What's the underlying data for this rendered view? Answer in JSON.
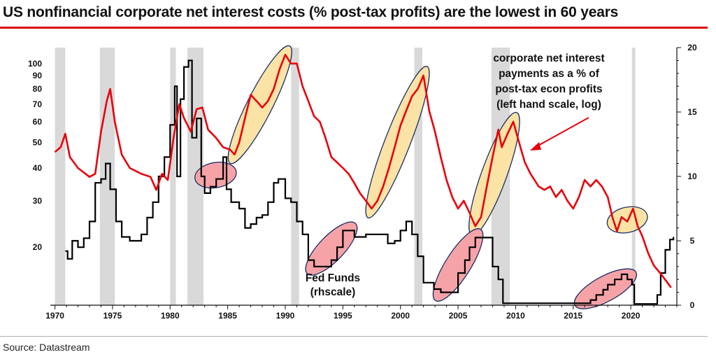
{
  "page": {
    "title": "US nonfinancial corporate net interest costs (% post-tax profits) are the lowest in 60 years",
    "source": "Source: Datastream"
  },
  "colors": {
    "interest_line": "#e8000b",
    "fedfunds_line": "#000000",
    "recession": "#d9d9d9",
    "rising_rates_fill": "#f6a3a8",
    "rising_interest_fill": "#fbe3a6",
    "accent_rule": "#d9000d"
  },
  "chart_data": {
    "type": "line",
    "title": "US nonfinancial corporate net interest costs (% post-tax profits) are the lowest in 60 years",
    "x_ticks": [
      1970,
      1975,
      1980,
      1985,
      1990,
      1995,
      2000,
      2005,
      2010,
      2015,
      2020
    ],
    "xlim": [
      1969.6,
      2024.0
    ],
    "left_axis": {
      "scale": "log",
      "ylim": [
        12,
        115
      ],
      "ticks": [
        20,
        30,
        40,
        50,
        60,
        70,
        80,
        90,
        100
      ]
    },
    "right_axis": {
      "scale": "linear",
      "ylim": [
        0,
        20
      ],
      "ticks": [
        0,
        5,
        10,
        15,
        20
      ]
    },
    "recessions": [
      [
        1970.0,
        1970.9
      ],
      [
        1973.9,
        1975.2
      ],
      [
        1980.0,
        1980.5
      ],
      [
        1981.5,
        1982.9
      ],
      [
        1990.5,
        1991.2
      ],
      [
        2001.2,
        2001.9
      ],
      [
        2007.9,
        2009.5
      ],
      [
        2020.1,
        2020.4
      ]
    ],
    "series": [
      {
        "name": "corporate net interest payments as a % of post-tax econ profits",
        "axis": "left",
        "points": [
          [
            1970.0,
            46
          ],
          [
            1970.5,
            48
          ],
          [
            1970.9,
            54
          ],
          [
            1971.3,
            44
          ],
          [
            1972.0,
            40
          ],
          [
            1973.0,
            37
          ],
          [
            1973.5,
            38
          ],
          [
            1974.0,
            55
          ],
          [
            1974.5,
            72
          ],
          [
            1974.8,
            80
          ],
          [
            1975.2,
            60
          ],
          [
            1975.8,
            45
          ],
          [
            1976.5,
            40
          ],
          [
            1977.5,
            38
          ],
          [
            1978.3,
            37
          ],
          [
            1978.8,
            33
          ],
          [
            1979.3,
            38
          ],
          [
            1979.8,
            36
          ],
          [
            1980.3,
            52
          ],
          [
            1980.8,
            70
          ],
          [
            1981.2,
            62
          ],
          [
            1981.8,
            55
          ],
          [
            1982.3,
            67
          ],
          [
            1982.8,
            68
          ],
          [
            1983.3,
            56
          ],
          [
            1984.0,
            52
          ],
          [
            1984.6,
            48
          ],
          [
            1985.2,
            47
          ],
          [
            1985.6,
            45
          ],
          [
            1986.0,
            50
          ],
          [
            1986.5,
            62
          ],
          [
            1987.0,
            76
          ],
          [
            1987.5,
            72
          ],
          [
            1988.0,
            68
          ],
          [
            1988.5,
            72
          ],
          [
            1989.0,
            80
          ],
          [
            1989.5,
            95
          ],
          [
            1990.0,
            108
          ],
          [
            1990.5,
            100
          ],
          [
            1991.0,
            100
          ],
          [
            1991.5,
            82
          ],
          [
            1992.0,
            72
          ],
          [
            1992.5,
            63
          ],
          [
            1993.0,
            60
          ],
          [
            1993.5,
            52
          ],
          [
            1994.0,
            44
          ],
          [
            1994.5,
            42
          ],
          [
            1995.0,
            40
          ],
          [
            1995.5,
            38
          ],
          [
            1996.0,
            35
          ],
          [
            1996.5,
            32
          ],
          [
            1997.0,
            30
          ],
          [
            1997.5,
            28
          ],
          [
            1998.0,
            30
          ],
          [
            1998.5,
            34
          ],
          [
            1999.0,
            40
          ],
          [
            1999.5,
            48
          ],
          [
            2000.0,
            58
          ],
          [
            2000.5,
            66
          ],
          [
            2001.0,
            75
          ],
          [
            2001.5,
            80
          ],
          [
            2002.0,
            90
          ],
          [
            2002.5,
            66
          ],
          [
            2003.0,
            55
          ],
          [
            2003.5,
            44
          ],
          [
            2004.0,
            36
          ],
          [
            2004.5,
            31
          ],
          [
            2005.0,
            28
          ],
          [
            2005.5,
            30
          ],
          [
            2006.0,
            27
          ],
          [
            2006.5,
            24
          ],
          [
            2007.0,
            26
          ],
          [
            2007.5,
            34
          ],
          [
            2008.0,
            44
          ],
          [
            2008.5,
            56
          ],
          [
            2008.8,
            48
          ],
          [
            2009.3,
            54
          ],
          [
            2009.8,
            60
          ],
          [
            2010.3,
            50
          ],
          [
            2010.8,
            42
          ],
          [
            2011.3,
            38
          ],
          [
            2012.0,
            34
          ],
          [
            2012.5,
            33
          ],
          [
            2013.0,
            34
          ],
          [
            2013.5,
            31
          ],
          [
            2014.0,
            33
          ],
          [
            2014.5,
            30
          ],
          [
            2015.0,
            28
          ],
          [
            2015.5,
            31
          ],
          [
            2016.0,
            36
          ],
          [
            2016.5,
            34
          ],
          [
            2017.0,
            36
          ],
          [
            2017.5,
            34
          ],
          [
            2018.0,
            31
          ],
          [
            2018.4,
            26
          ],
          [
            2018.8,
            23
          ],
          [
            2019.2,
            26
          ],
          [
            2019.7,
            25
          ],
          [
            2020.2,
            28
          ],
          [
            2020.6,
            24
          ],
          [
            2021.0,
            22
          ],
          [
            2021.5,
            19
          ],
          [
            2022.0,
            17
          ],
          [
            2022.5,
            16
          ],
          [
            2023.0,
            15
          ],
          [
            2023.5,
            14
          ]
        ]
      },
      {
        "name": "Fed Funds (rhscale)",
        "axis": "right",
        "points": [
          [
            1970.9,
            4.2
          ],
          [
            1971.1,
            3.6
          ],
          [
            1971.5,
            5.0
          ],
          [
            1972.0,
            4.5
          ],
          [
            1972.5,
            5.2
          ],
          [
            1973.0,
            6.5
          ],
          [
            1973.5,
            9.5
          ],
          [
            1974.0,
            9.8
          ],
          [
            1974.4,
            11.0
          ],
          [
            1974.8,
            9.0
          ],
          [
            1975.3,
            6.5
          ],
          [
            1975.8,
            5.3
          ],
          [
            1976.5,
            5.0
          ],
          [
            1977.0,
            5.0
          ],
          [
            1977.5,
            5.5
          ],
          [
            1978.0,
            6.8
          ],
          [
            1978.5,
            8.0
          ],
          [
            1979.0,
            10.0
          ],
          [
            1979.5,
            11.5
          ],
          [
            1980.0,
            14.0
          ],
          [
            1980.4,
            17.0
          ],
          [
            1980.6,
            10.0
          ],
          [
            1980.9,
            16.0
          ],
          [
            1981.2,
            18.5
          ],
          [
            1981.6,
            19.0
          ],
          [
            1981.9,
            13.0
          ],
          [
            1982.3,
            14.5
          ],
          [
            1982.7,
            10.0
          ],
          [
            1983.0,
            8.7
          ],
          [
            1983.5,
            9.2
          ],
          [
            1984.0,
            9.8
          ],
          [
            1984.6,
            11.5
          ],
          [
            1984.9,
            9.0
          ],
          [
            1985.3,
            8.0
          ],
          [
            1986.0,
            7.5
          ],
          [
            1986.5,
            6.0
          ],
          [
            1987.0,
            6.3
          ],
          [
            1987.5,
            6.8
          ],
          [
            1988.0,
            7.0
          ],
          [
            1988.5,
            8.0
          ],
          [
            1989.0,
            9.5
          ],
          [
            1989.4,
            9.8
          ],
          [
            1990.0,
            8.3
          ],
          [
            1990.5,
            8.0
          ],
          [
            1991.0,
            6.5
          ],
          [
            1991.5,
            5.5
          ],
          [
            1992.0,
            3.5
          ],
          [
            1992.5,
            3.0
          ],
          [
            1993.0,
            3.0
          ],
          [
            1993.6,
            3.0
          ],
          [
            1994.0,
            3.5
          ],
          [
            1994.5,
            4.5
          ],
          [
            1995.0,
            5.8
          ],
          [
            1995.5,
            5.8
          ],
          [
            1996.0,
            5.3
          ],
          [
            1997.0,
            5.5
          ],
          [
            1998.0,
            5.5
          ],
          [
            1998.9,
            4.8
          ],
          [
            1999.5,
            5.0
          ],
          [
            2000.0,
            5.8
          ],
          [
            2000.5,
            6.5
          ],
          [
            2001.0,
            5.5
          ],
          [
            2001.5,
            3.8
          ],
          [
            2002.0,
            1.75
          ],
          [
            2002.9,
            1.25
          ],
          [
            2003.5,
            1.0
          ],
          [
            2004.4,
            1.0
          ],
          [
            2005.0,
            2.5
          ],
          [
            2005.6,
            3.5
          ],
          [
            2006.0,
            4.5
          ],
          [
            2006.5,
            5.25
          ],
          [
            2007.5,
            5.25
          ],
          [
            2008.0,
            3.0
          ],
          [
            2008.5,
            2.0
          ],
          [
            2008.9,
            0.15
          ],
          [
            2015.9,
            0.15
          ],
          [
            2016.5,
            0.4
          ],
          [
            2017.0,
            0.8
          ],
          [
            2017.6,
            1.2
          ],
          [
            2018.0,
            1.6
          ],
          [
            2018.6,
            2.0
          ],
          [
            2019.2,
            2.4
          ],
          [
            2019.7,
            2.0
          ],
          [
            2020.1,
            1.6
          ],
          [
            2020.3,
            0.1
          ],
          [
            2022.0,
            0.1
          ],
          [
            2022.3,
            0.8
          ],
          [
            2022.6,
            2.5
          ],
          [
            2023.0,
            4.3
          ],
          [
            2023.4,
            5.1
          ],
          [
            2023.7,
            5.3
          ]
        ]
      }
    ],
    "highlights": {
      "rising_interest": [
        [
          1985.6,
          1990.3
        ],
        [
          1997.5,
          2002.4
        ],
        [
          2006.4,
          2010.1
        ],
        [
          2018.5,
          2020.9
        ]
      ],
      "rising_rates": [
        [
          1983.0,
          1985.0
        ],
        [
          1992.3,
          1995.6
        ],
        [
          2003.4,
          2006.6
        ],
        [
          2015.9,
          2019.8
        ]
      ]
    },
    "annotations": {
      "red_series_label": [
        "corporate net interest",
        "payments as a % of",
        "post-tax econ profits",
        "(left hand scale, log)"
      ],
      "black_series_label": [
        "Fed Funds",
        "(rhscale)"
      ]
    }
  }
}
